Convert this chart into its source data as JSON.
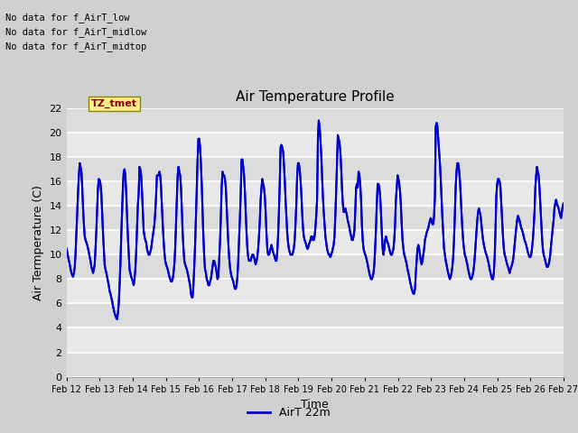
{
  "title": "Air Temperature Profile",
  "xlabel": "Time",
  "ylabel": "Air Termperature (C)",
  "legend_label": "AirT 22m",
  "ylim": [
    0,
    22
  ],
  "yticks": [
    0,
    2,
    4,
    6,
    8,
    10,
    12,
    14,
    16,
    18,
    20,
    22
  ],
  "line_color": "#0000cc",
  "line_width": 1.5,
  "fig_bg_color": "#e8e8e8",
  "plot_bg_color": "#e8e8e8",
  "annotations": [
    "No data for f_AirT_low",
    "No data for f_AirT_midlow",
    "No data for f_AirT_midtop"
  ],
  "tz_label": "TZ_tmet",
  "x_tick_labels": [
    "Feb 12",
    "Feb 13",
    "Feb 14",
    "Feb 15",
    "Feb 16",
    "Feb 17",
    "Feb 18",
    "Feb 19",
    "Feb 20",
    "Feb 21",
    "Feb 22",
    "Feb 23",
    "Feb 24",
    "Feb 25",
    "Feb 26",
    "Feb 27"
  ],
  "temperature_data": [
    10.5,
    10.2,
    9.8,
    9.5,
    9.2,
    8.8,
    8.5,
    8.3,
    8.2,
    8.5,
    9.0,
    10.2,
    11.8,
    13.5,
    15.2,
    16.5,
    17.5,
    17.2,
    16.8,
    15.5,
    13.8,
    12.5,
    11.5,
    11.2,
    11.0,
    10.8,
    10.5,
    10.2,
    9.8,
    9.5,
    9.0,
    8.8,
    8.5,
    8.8,
    9.2,
    10.5,
    12.0,
    13.8,
    15.5,
    16.2,
    16.1,
    15.8,
    15.0,
    13.5,
    11.8,
    10.5,
    9.2,
    8.8,
    8.5,
    8.2,
    7.8,
    7.5,
    7.0,
    6.8,
    6.5,
    6.2,
    5.8,
    5.5,
    5.2,
    5.0,
    4.8,
    4.7,
    5.2,
    6.0,
    7.5,
    9.2,
    11.5,
    13.5,
    15.5,
    16.8,
    17.0,
    16.5,
    15.0,
    13.2,
    11.5,
    10.2,
    8.8,
    8.5,
    8.2,
    8.0,
    7.8,
    7.5,
    8.0,
    8.8,
    10.2,
    12.0,
    14.0,
    15.0,
    17.2,
    17.0,
    16.5,
    15.2,
    13.5,
    12.0,
    11.5,
    11.2,
    11.0,
    10.5,
    10.2,
    10.0,
    10.0,
    10.2,
    10.5,
    11.0,
    11.5,
    12.0,
    12.5,
    13.5,
    14.8,
    16.5,
    16.5,
    16.5,
    16.8,
    16.5,
    15.5,
    14.0,
    12.5,
    11.2,
    10.2,
    9.5,
    9.2,
    9.0,
    8.8,
    8.5,
    8.2,
    8.0,
    7.8,
    7.8,
    8.0,
    8.5,
    9.2,
    10.5,
    12.5,
    14.5,
    16.5,
    17.2,
    16.8,
    16.5,
    15.5,
    13.8,
    11.8,
    10.5,
    9.5,
    9.2,
    9.0,
    8.8,
    8.5,
    8.2,
    7.8,
    7.5,
    6.8,
    6.5,
    6.5,
    7.5,
    9.0,
    10.8,
    13.0,
    15.5,
    17.8,
    19.5,
    19.5,
    18.8,
    17.5,
    15.8,
    13.5,
    11.5,
    9.8,
    8.8,
    8.5,
    8.0,
    7.8,
    7.5,
    7.5,
    7.8,
    8.0,
    8.5,
    9.0,
    9.5,
    9.5,
    9.2,
    9.0,
    8.5,
    8.0,
    8.2,
    9.5,
    11.0,
    13.0,
    15.5,
    16.8,
    16.5,
    16.5,
    16.2,
    15.5,
    14.0,
    12.5,
    11.0,
    9.8,
    9.0,
    8.5,
    8.2,
    8.0,
    7.8,
    7.5,
    7.2,
    7.2,
    7.5,
    8.2,
    9.5,
    11.2,
    13.0,
    15.0,
    17.8,
    17.8,
    17.2,
    16.5,
    15.2,
    13.5,
    11.8,
    10.5,
    9.8,
    9.5,
    9.5,
    9.5,
    9.8,
    10.0,
    10.0,
    9.8,
    9.5,
    9.2,
    9.5,
    9.8,
    10.5,
    11.5,
    12.8,
    14.5,
    15.5,
    16.2,
    15.8,
    15.5,
    14.8,
    13.5,
    11.8,
    10.5,
    10.0,
    10.0,
    10.2,
    10.5,
    10.8,
    10.5,
    10.2,
    10.0,
    9.8,
    9.5,
    9.5,
    10.2,
    11.5,
    13.5,
    15.8,
    18.8,
    19.0,
    18.8,
    18.5,
    17.5,
    16.2,
    14.5,
    13.2,
    11.8,
    11.0,
    10.5,
    10.2,
    10.0,
    10.0,
    10.0,
    10.2,
    10.5,
    11.2,
    12.5,
    14.2,
    16.5,
    17.5,
    17.5,
    17.0,
    16.2,
    15.0,
    13.5,
    12.2,
    11.5,
    11.2,
    11.0,
    10.8,
    10.5,
    10.5,
    10.8,
    11.0,
    11.2,
    11.5,
    11.5,
    11.2,
    11.2,
    11.5,
    12.2,
    13.2,
    14.5,
    19.5,
    21.0,
    20.5,
    19.5,
    18.2,
    16.5,
    14.8,
    13.5,
    12.5,
    11.5,
    11.0,
    10.5,
    10.2,
    10.0,
    10.0,
    9.8,
    10.0,
    10.2,
    10.5,
    10.8,
    11.5,
    13.2,
    15.2,
    17.5,
    19.8,
    19.5,
    19.2,
    18.5,
    17.2,
    15.5,
    14.2,
    13.5,
    13.5,
    13.8,
    13.5,
    13.2,
    12.8,
    12.5,
    12.2,
    11.8,
    11.5,
    11.2,
    11.2,
    11.5,
    12.0,
    13.5,
    15.5,
    15.8,
    15.5,
    16.8,
    16.5,
    15.8,
    14.5,
    12.5,
    11.2,
    10.5,
    10.2,
    10.0,
    9.8,
    9.5,
    9.2,
    8.8,
    8.5,
    8.2,
    8.0,
    8.0,
    8.2,
    8.5,
    9.2,
    10.5,
    12.2,
    14.2,
    15.8,
    15.8,
    15.5,
    14.8,
    13.5,
    11.8,
    10.5,
    10.0,
    10.5,
    11.2,
    11.5,
    11.2,
    11.0,
    10.8,
    10.5,
    10.2,
    10.0,
    10.0,
    10.2,
    10.5,
    11.2,
    12.5,
    14.5,
    15.5,
    16.5,
    16.2,
    15.8,
    15.2,
    14.0,
    12.5,
    11.2,
    10.5,
    10.0,
    9.8,
    9.5,
    9.2,
    8.8,
    8.5,
    8.2,
    7.8,
    7.5,
    7.2,
    7.0,
    6.8,
    6.8,
    7.2,
    8.5,
    9.5,
    10.5,
    10.8,
    10.5,
    10.0,
    9.5,
    9.2,
    9.5,
    10.0,
    10.5,
    11.2,
    11.5,
    11.8,
    12.0,
    12.2,
    12.5,
    12.8,
    13.0,
    12.8,
    12.5,
    12.5,
    13.2,
    14.8,
    20.5,
    20.8,
    20.5,
    19.5,
    18.5,
    17.5,
    16.2,
    14.5,
    13.0,
    11.8,
    10.5,
    10.0,
    9.5,
    9.2,
    8.8,
    8.5,
    8.2,
    8.0,
    8.2,
    8.5,
    9.0,
    9.8,
    11.2,
    13.2,
    15.5,
    16.8,
    17.5,
    17.5,
    17.0,
    16.2,
    15.0,
    13.5,
    12.2,
    11.2,
    10.5,
    10.0,
    9.8,
    9.5,
    9.2,
    8.8,
    8.5,
    8.2,
    8.0,
    8.0,
    8.2,
    8.5,
    9.0,
    9.8,
    10.8,
    11.8,
    12.8,
    13.5,
    13.8,
    13.5,
    13.2,
    12.5,
    11.8,
    11.2,
    10.8,
    10.5,
    10.2,
    10.0,
    9.8,
    9.5,
    9.2,
    8.8,
    8.5,
    8.2,
    8.0,
    8.0,
    8.5,
    9.8,
    12.0,
    14.8,
    15.8,
    16.2,
    16.2,
    16.0,
    15.5,
    14.2,
    12.8,
    11.5,
    10.5,
    10.0,
    9.8,
    9.5,
    9.2,
    9.0,
    8.8,
    8.5,
    8.8,
    9.0,
    9.2,
    9.5,
    10.0,
    10.8,
    11.5,
    12.2,
    12.8,
    13.2,
    13.0,
    12.8,
    12.5,
    12.2,
    12.0,
    11.8,
    11.5,
    11.2,
    11.0,
    10.8,
    10.5,
    10.2,
    10.0,
    9.8,
    9.8,
    10.0,
    10.5,
    11.2,
    12.2,
    13.5,
    15.5,
    16.5,
    17.2,
    16.8,
    16.5,
    15.5,
    14.2,
    12.8,
    11.5,
    10.5,
    10.0,
    9.8,
    9.5,
    9.2,
    9.0,
    9.0,
    9.2,
    9.5,
    10.0,
    10.8,
    11.5,
    12.2,
    12.8,
    13.8,
    14.2,
    14.5,
    14.2,
    14.0,
    13.8,
    13.5,
    13.2,
    13.0,
    13.5,
    14.0,
    14.2
  ]
}
